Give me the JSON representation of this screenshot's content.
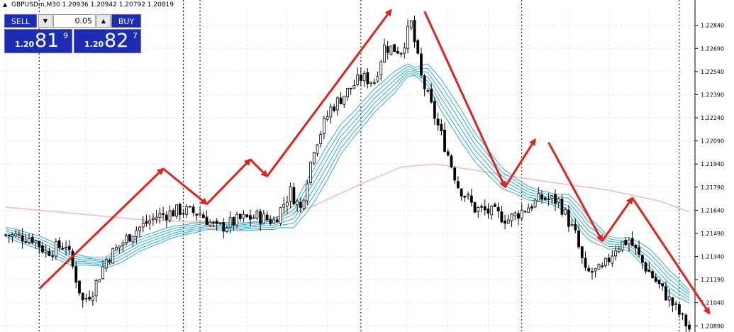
{
  "header": {
    "symbol_text": "GBPUSDm,M30",
    "ohlc_text": "1.20936 1.20942 1.20792 1.20819"
  },
  "trade_panel": {
    "sell_label": "SELL",
    "buy_label": "BUY",
    "lot_value": "0.05",
    "sell_price": {
      "small": "1.20",
      "big": "81",
      "sup": "9"
    },
    "buy_price": {
      "small": "1.20",
      "big": "82",
      "sup": "7"
    },
    "dropdown_icon": "triangle-down-icon",
    "up_icon": "triangle-up-icon"
  },
  "colors": {
    "bull": "#000000",
    "bear": "#000000",
    "ribbon": "#1aa6cc",
    "slow_ma": "#f2b8bf",
    "arrow": "#e3211c",
    "grid": "#e6e6e6",
    "separator": "#000000",
    "trade_panel_bg": "#1d2cb5"
  },
  "chart_data": {
    "type": "candlestick",
    "symbol": "GBPUSDm",
    "timeframe": "M30",
    "ylim": [
      1.2085,
      1.2294
    ],
    "y_ticks": [
      "1.22840",
      "1.22690",
      "1.22540",
      "1.22390",
      "1.22240",
      "1.22090",
      "1.21940",
      "1.21790",
      "1.21640",
      "1.21490",
      "1.21340",
      "1.21190",
      "1.21040",
      "1.20890"
    ],
    "y_tick_values": [
      1.2284,
      1.2269,
      1.2254,
      1.2239,
      1.2224,
      1.2209,
      1.2194,
      1.2179,
      1.2164,
      1.2149,
      1.2134,
      1.2119,
      1.2104,
      1.2089
    ],
    "grid": true,
    "bar_count": 205,
    "close_path": [
      [
        0,
        1.2148
      ],
      [
        8,
        1.2146
      ],
      [
        12,
        1.2137
      ],
      [
        18,
        1.2142
      ],
      [
        23,
        1.2105
      ],
      [
        26,
        1.2112
      ],
      [
        30,
        1.2132
      ],
      [
        38,
        1.215
      ],
      [
        45,
        1.216
      ],
      [
        52,
        1.2164
      ],
      [
        58,
        1.2162
      ],
      [
        63,
        1.2152
      ],
      [
        70,
        1.2158
      ],
      [
        75,
        1.216
      ],
      [
        80,
        1.2157
      ],
      [
        85,
        1.2176
      ],
      [
        88,
        1.2165
      ],
      [
        92,
        1.2205
      ],
      [
        97,
        1.223
      ],
      [
        106,
        1.225
      ],
      [
        110,
        1.2248
      ],
      [
        113,
        1.227
      ],
      [
        118,
        1.2268
      ],
      [
        121,
        1.2285
      ],
      [
        124,
        1.225
      ],
      [
        128,
        1.2225
      ],
      [
        132,
        1.22
      ],
      [
        135,
        1.218
      ],
      [
        140,
        1.2165
      ],
      [
        146,
        1.2162
      ],
      [
        150,
        1.2158
      ],
      [
        155,
        1.2165
      ],
      [
        160,
        1.2172
      ],
      [
        165,
        1.217
      ],
      [
        170,
        1.2148
      ],
      [
        173,
        1.2123
      ],
      [
        178,
        1.2125
      ],
      [
        182,
        1.214
      ],
      [
        186,
        1.2145
      ],
      [
        190,
        1.213
      ],
      [
        195,
        1.2115
      ],
      [
        200,
        1.21
      ],
      [
        204,
        1.2087
      ]
    ],
    "series": [
      {
        "type": "ribbon",
        "color": "#1aa6cc",
        "lines": 6,
        "values": [
          [
            0,
            1.215
          ],
          [
            10,
            1.2143
          ],
          [
            20,
            1.2132
          ],
          [
            30,
            1.213
          ],
          [
            40,
            1.2142
          ],
          [
            50,
            1.215
          ],
          [
            60,
            1.2154
          ],
          [
            70,
            1.2153
          ],
          [
            80,
            1.2155
          ],
          [
            86,
            1.216
          ],
          [
            92,
            1.218
          ],
          [
            100,
            1.221
          ],
          [
            110,
            1.2235
          ],
          [
            120,
            1.2255
          ],
          [
            126,
            1.2252
          ],
          [
            132,
            1.2232
          ],
          [
            140,
            1.2205
          ],
          [
            148,
            1.2185
          ],
          [
            156,
            1.2175
          ],
          [
            162,
            1.2172
          ],
          [
            168,
            1.2168
          ],
          [
            174,
            1.2152
          ],
          [
            180,
            1.2143
          ],
          [
            186,
            1.2142
          ],
          [
            192,
            1.2132
          ],
          [
            198,
            1.2118
          ],
          [
            204,
            1.2108
          ]
        ]
      },
      {
        "type": "line",
        "color": "#f2b8bf",
        "values": [
          [
            0,
            1.2166
          ],
          [
            20,
            1.2162
          ],
          [
            40,
            1.2158
          ],
          [
            60,
            1.2156
          ],
          [
            75,
            1.2156
          ],
          [
            90,
            1.2165
          ],
          [
            105,
            1.218
          ],
          [
            118,
            1.2192
          ],
          [
            128,
            1.2194
          ],
          [
            140,
            1.219
          ],
          [
            160,
            1.2183
          ],
          [
            180,
            1.2177
          ],
          [
            195,
            1.217
          ],
          [
            204,
            1.2163
          ]
        ]
      }
    ],
    "arrows": [
      {
        "from": [
          10,
          1.2113
        ],
        "to": [
          47,
          1.2191
        ]
      },
      {
        "from": [
          47,
          1.2191
        ],
        "to": [
          60,
          1.2168
        ]
      },
      {
        "from": [
          60,
          1.2168
        ],
        "to": [
          73,
          1.2197
        ]
      },
      {
        "from": [
          73,
          1.2197
        ],
        "to": [
          78,
          1.2186
        ]
      },
      {
        "from": [
          78,
          1.2186
        ],
        "to": [
          115,
          1.2294
        ]
      },
      {
        "from": [
          125,
          1.2293
        ],
        "to": [
          149,
          1.2179
        ]
      },
      {
        "from": [
          149,
          1.2179
        ],
        "to": [
          158,
          1.221
        ]
      },
      {
        "from": [
          162,
          1.2208
        ],
        "to": [
          178,
          1.2144
        ]
      },
      {
        "from": [
          178,
          1.2144
        ],
        "to": [
          187,
          1.2172
        ]
      },
      {
        "from": [
          187,
          1.2172
        ],
        "to": [
          210,
          1.2097
        ]
      }
    ],
    "session_separators": [
      10,
      53,
      58,
      106,
      154,
      201
    ]
  }
}
